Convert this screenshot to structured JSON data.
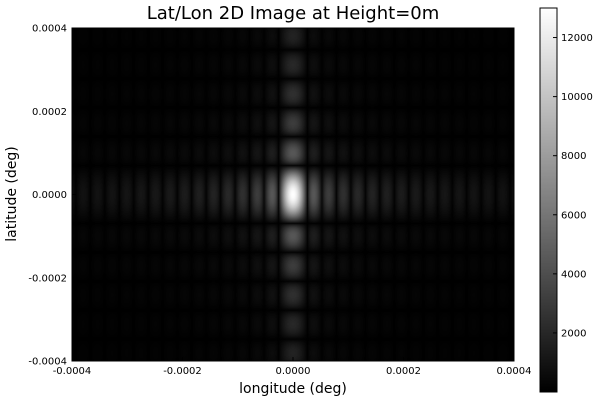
{
  "chart_data": {
    "type": "heatmap",
    "title": "Lat/Lon 2D Image at Height=0m",
    "xlabel": "longitude (deg)",
    "ylabel": "latitude (deg)",
    "xlim": [
      -0.0004,
      0.0004
    ],
    "ylim": [
      -0.0004,
      0.0004
    ],
    "x_ticks": [
      -0.0004,
      -0.0002,
      0.0,
      0.0002,
      0.0004
    ],
    "x_tick_labels": [
      "-0.0004",
      "-0.0002",
      "0.0000",
      "0.0002",
      "0.0004"
    ],
    "y_ticks": [
      -0.0004,
      -0.0002,
      0.0,
      0.0002,
      0.0004
    ],
    "y_tick_labels": [
      "-0.0004",
      "-0.0002",
      "0.0000",
      "0.0002",
      "0.0004"
    ],
    "colormap": "grayscale",
    "color_min": 0,
    "color_max": 13000,
    "colorbar_ticks": [
      2000,
      4000,
      6000,
      8000,
      10000,
      12000
    ],
    "colorbar_tick_labels": [
      "2000",
      "4000",
      "6000",
      "8000",
      "10000",
      "12000"
    ],
    "peak": {
      "x": 0.0,
      "y": 0.0,
      "value": 13000
    },
    "pattern": "2D sinc-squared point-spread function; sidelobes spaced ~0.00003 deg along longitude and ~0.00007 deg along latitude",
    "sidelobe_spacing_lon": 2.62e-05,
    "sidelobe_spacing_lat": 6.95e-05,
    "grid": false,
    "legend": "colorbar-right"
  }
}
